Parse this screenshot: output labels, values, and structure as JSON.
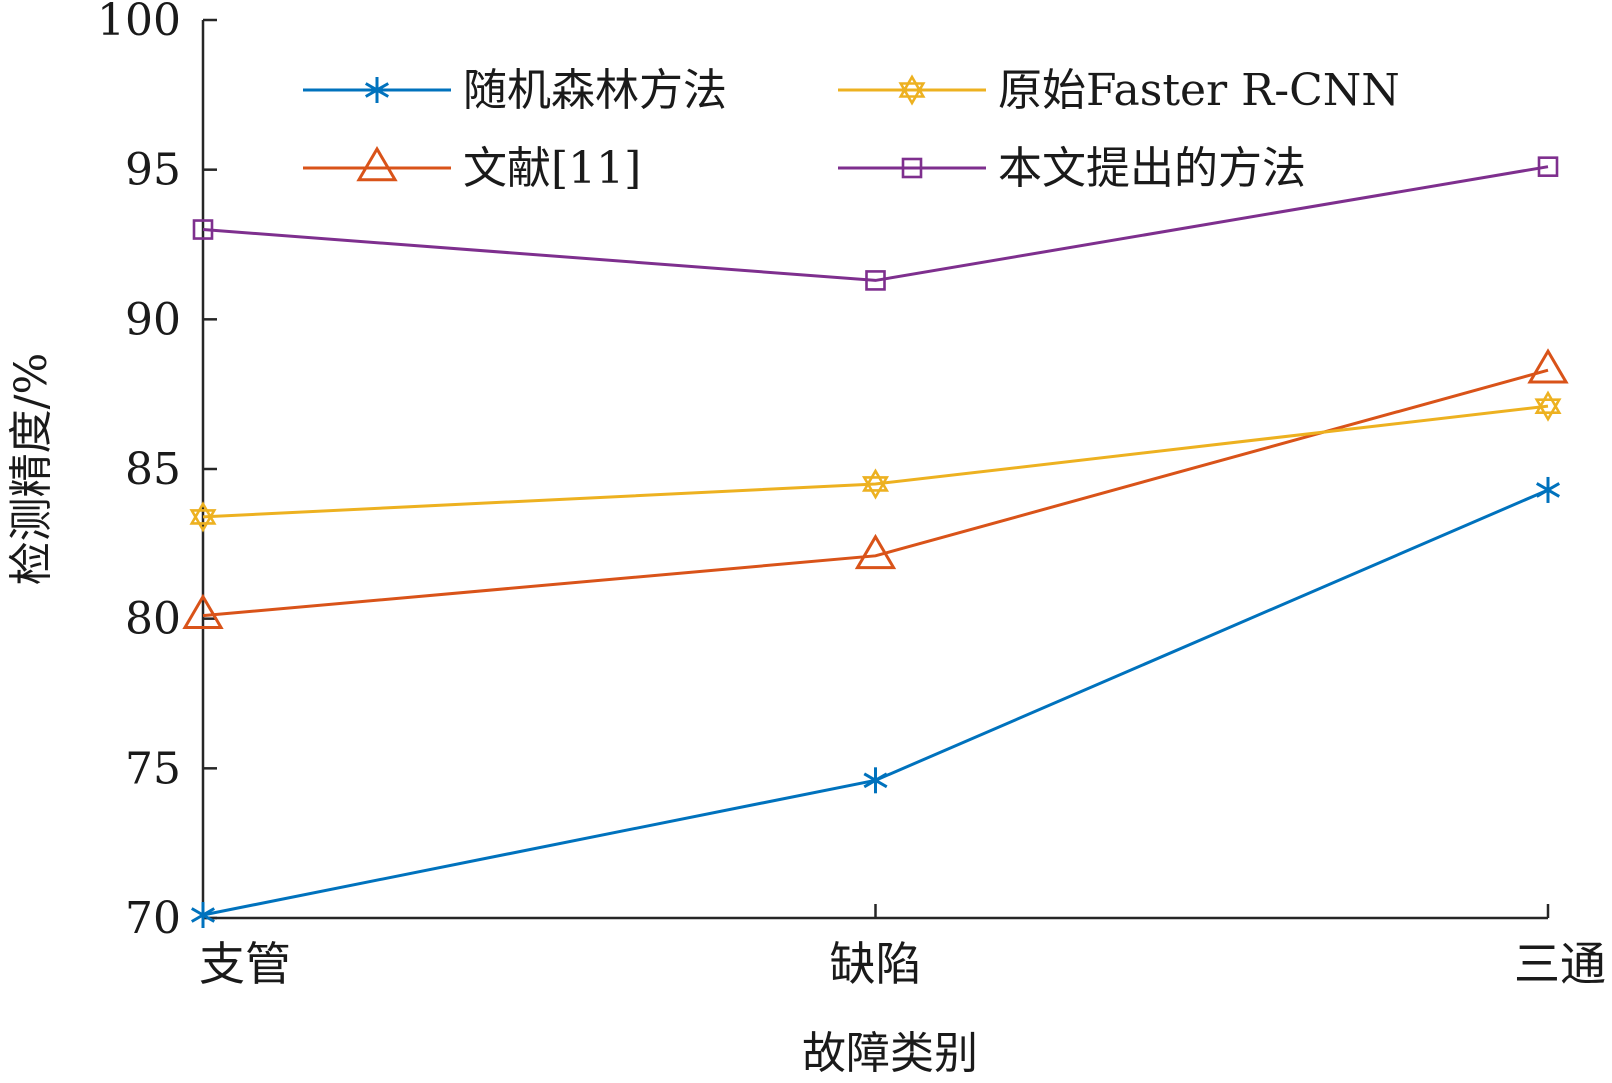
{
  "chart_data": {
    "type": "line",
    "title": "",
    "xlabel": "故障类别",
    "ylabel": "检测精度/%",
    "categories": [
      "支管",
      "缺陷",
      "三通"
    ],
    "ylim": [
      70,
      100
    ],
    "yticks": [
      "70",
      "75",
      "80",
      "85",
      "90",
      "95",
      "100"
    ],
    "grid": false,
    "legend_position": "top",
    "series": [
      {
        "name": "随机森林方法",
        "values": [
          70.1,
          74.6,
          84.3
        ],
        "color": "#0072BD",
        "marker": "asterisk"
      },
      {
        "name": "文献[11]",
        "values": [
          80.1,
          82.1,
          88.3
        ],
        "color": "#D95319",
        "marker": "triangle"
      },
      {
        "name": "原始Faster R-CNN",
        "values": [
          83.4,
          84.5,
          87.1
        ],
        "color": "#EDB120",
        "marker": "hexagram"
      },
      {
        "name": "本文提出的方法",
        "values": [
          93.0,
          91.3,
          95.1
        ],
        "color": "#7E2F8E",
        "marker": "square"
      }
    ]
  }
}
